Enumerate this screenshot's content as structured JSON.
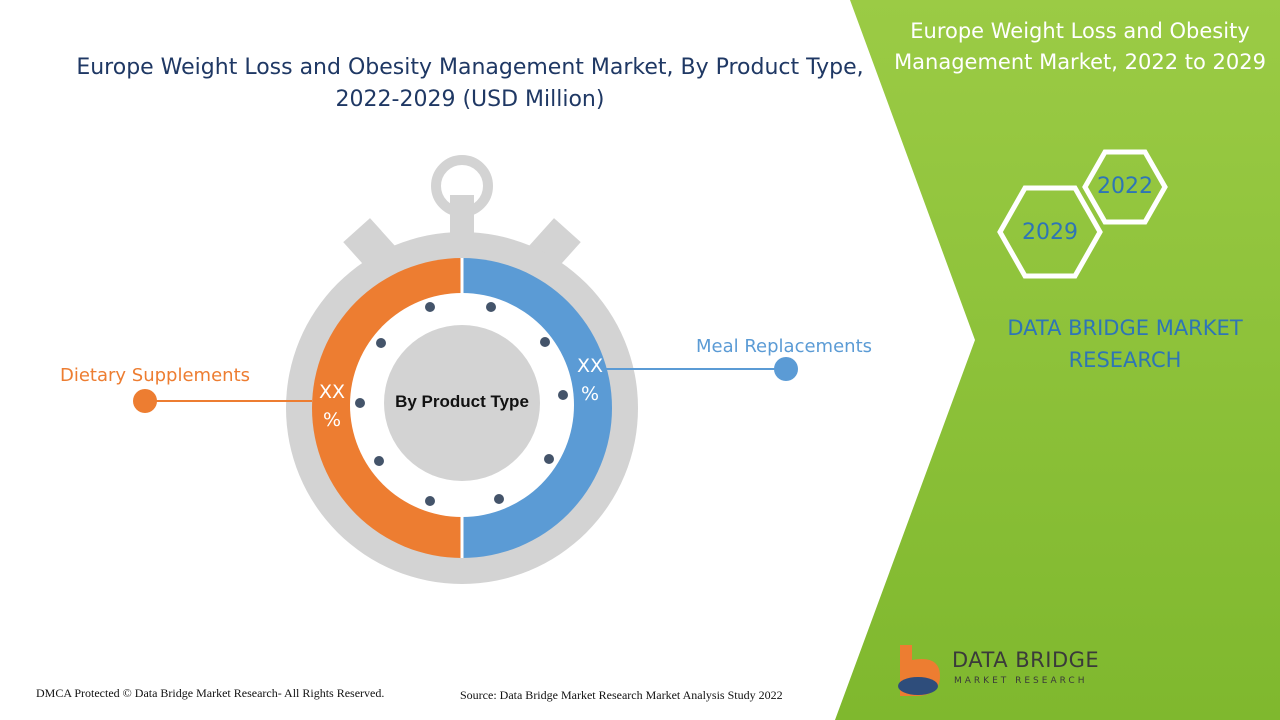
{
  "title": "Europe Weight Loss and Obesity Management Market, By Product Type, 2022-2029 (USD Million)",
  "panel": {
    "title": "Europe Weight Loss and Obesity Management Market, 2022 to 2029",
    "year_start": "2022",
    "year_end": "2029",
    "brand": "DATA BRIDGE MARKET RESEARCH"
  },
  "diagram": {
    "center_label": "By Product Type",
    "segments": [
      {
        "name": "Dietary Supplements",
        "share_label": [
          "XX",
          "%"
        ]
      },
      {
        "name": "Meal Replacements",
        "share_label": [
          "XX",
          "%"
        ]
      }
    ]
  },
  "logo": {
    "name": "DATA BRIDGE",
    "tagline": "MARKET RESEARCH"
  },
  "footer": {
    "copyright": "DMCA Protected © Data Bridge Market Research- All Rights Reserved.",
    "source": "Source: Data Bridge Market Research Market Analysis Study 2022"
  }
}
